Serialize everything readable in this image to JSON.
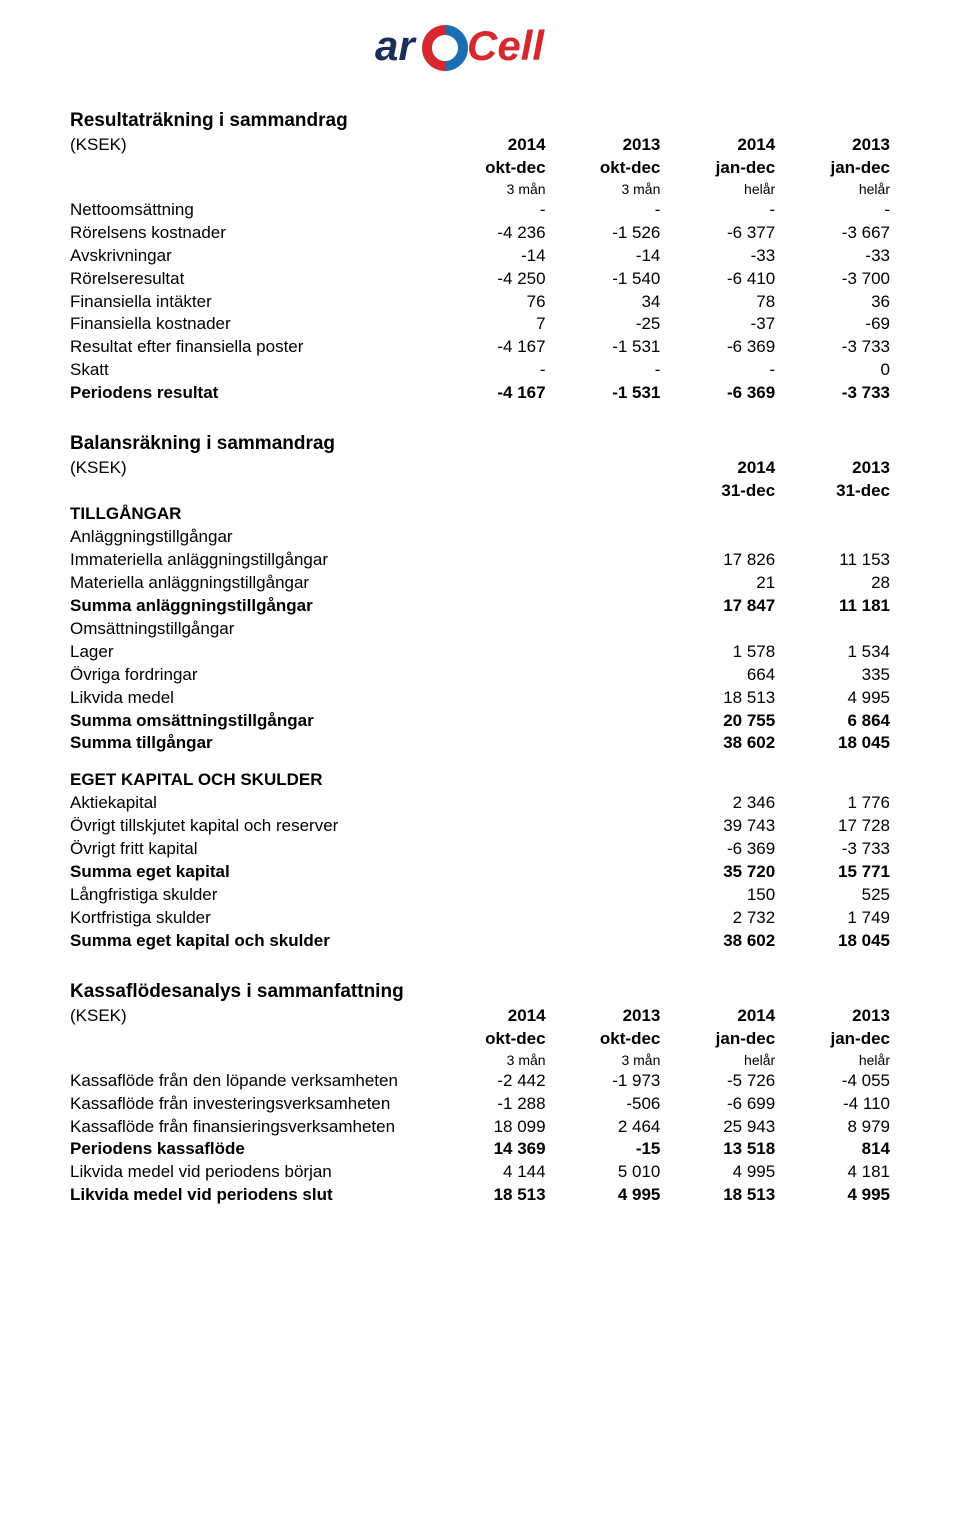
{
  "colors": {
    "text": "#000000",
    "background": "#ffffff",
    "logo_navy": "#1b2d5b",
    "logo_red": "#d7282f",
    "logo_blue": "#1a6fb0",
    "logo_italic": "#1b2d5b"
  },
  "logo": {
    "ar": "ar",
    "cell": "Cell"
  },
  "income": {
    "title": "Resultaträkning i sammandrag",
    "unit": "(KSEK)",
    "years": [
      "2014",
      "2013",
      "2014",
      "2013"
    ],
    "periods": [
      "okt-dec",
      "okt-dec",
      "jan-dec",
      "jan-dec"
    ],
    "sub": [
      "3 mån",
      "3 mån",
      "helår",
      "helår"
    ],
    "rows": [
      {
        "label": "Nettoomsättning",
        "v": [
          "-",
          "-",
          "-",
          "-"
        ]
      },
      {
        "label": "Rörelsens kostnader",
        "v": [
          "-4 236",
          "-1 526",
          "-6 377",
          "-3 667"
        ]
      },
      {
        "label": "Avskrivningar",
        "v": [
          "-14",
          "-14",
          "-33",
          "-33"
        ]
      },
      {
        "label": "Rörelseresultat",
        "v": [
          "-4 250",
          "-1 540",
          "-6 410",
          "-3 700"
        ]
      },
      {
        "label": "Finansiella intäkter",
        "v": [
          "76",
          "34",
          "78",
          "36"
        ]
      },
      {
        "label": "Finansiella kostnader",
        "v": [
          "7",
          "-25",
          "-37",
          "-69"
        ]
      },
      {
        "label": "Resultat efter finansiella poster",
        "v": [
          "-4 167",
          "-1 531",
          "-6 369",
          "-3 733"
        ]
      },
      {
        "label": "Skatt",
        "v": [
          "-",
          "-",
          "-",
          "0"
        ]
      },
      {
        "label": "Periodens resultat",
        "bold": true,
        "v": [
          "-4 167",
          "-1 531",
          "-6 369",
          "-3 733"
        ]
      }
    ]
  },
  "balance": {
    "title": "Balansräkning i sammandrag",
    "unit": "(KSEK)",
    "years": [
      "2014",
      "2013"
    ],
    "dates": [
      "31-dec",
      "31-dec"
    ],
    "assets_header": "TILLGÅNGAR",
    "fixed_header": "Anläggningstillgångar",
    "fixed": [
      {
        "label": "Immateriella anläggningstillgångar",
        "v": [
          "17 826",
          "11 153"
        ]
      },
      {
        "label": "Materiella anläggningstillgångar",
        "v": [
          "21",
          "28"
        ]
      },
      {
        "label": "Summa anläggningstillgångar",
        "bold": true,
        "v": [
          "17 847",
          "11 181"
        ]
      }
    ],
    "current_header": "Omsättningstillgångar",
    "current": [
      {
        "label": "Lager",
        "v": [
          "1 578",
          "1 534"
        ]
      },
      {
        "label": "Övriga fordringar",
        "v": [
          "664",
          "335"
        ]
      },
      {
        "label": "Likvida medel",
        "v": [
          "18 513",
          "4 995"
        ]
      },
      {
        "label": "Summa omsättningstillgångar",
        "bold": true,
        "v": [
          "20 755",
          "6 864"
        ]
      },
      {
        "label": "Summa tillgångar",
        "bold": true,
        "v": [
          "38 602",
          "18 045"
        ]
      }
    ],
    "equity_header": "EGET KAPITAL OCH SKULDER",
    "equity": [
      {
        "label": "Aktiekapital",
        "v": [
          "2 346",
          "1 776"
        ]
      },
      {
        "label": "Övrigt tillskjutet kapital och reserver",
        "v": [
          "39 743",
          "17 728"
        ]
      },
      {
        "label": "Övrigt fritt kapital",
        "v": [
          "-6 369",
          "-3 733"
        ]
      },
      {
        "label": "Summa eget kapital",
        "bold": true,
        "v": [
          "35 720",
          "15 771"
        ]
      },
      {
        "label": "Långfristiga skulder",
        "v": [
          "150",
          "525"
        ]
      },
      {
        "label": "Kortfristiga skulder",
        "v": [
          "2 732",
          "1 749"
        ]
      },
      {
        "label": "Summa eget kapital och skulder",
        "bold": true,
        "v": [
          "38 602",
          "18 045"
        ]
      }
    ]
  },
  "cashflow": {
    "title": "Kassaflödesanalys i sammanfattning",
    "unit": "(KSEK)",
    "years": [
      "2014",
      "2013",
      "2014",
      "2013"
    ],
    "periods": [
      "okt-dec",
      "okt-dec",
      "jan-dec",
      "jan-dec"
    ],
    "sub": [
      "3 mån",
      "3 mån",
      "helår",
      "helår"
    ],
    "rows": [
      {
        "label": "Kassaflöde från den löpande verksamheten",
        "v": [
          "-2 442",
          "-1 973",
          "-5 726",
          "-4 055"
        ]
      },
      {
        "label": "Kassaflöde från investeringsverksamheten",
        "v": [
          "-1 288",
          "-506",
          "-6 699",
          "-4 110"
        ]
      },
      {
        "label": "Kassaflöde från finansieringsverksamheten",
        "v": [
          "18 099",
          "2 464",
          "25 943",
          "8 979"
        ]
      },
      {
        "label": "Periodens kassaflöde",
        "bold": true,
        "v": [
          "14 369",
          "-15",
          "13 518",
          "814"
        ]
      },
      {
        "label": "Likvida medel vid periodens början",
        "v": [
          "4 144",
          "5 010",
          "4 995",
          "4 181"
        ]
      },
      {
        "label": "Likvida medel vid periodens slut",
        "bold": true,
        "v": [
          "18 513",
          "4 995",
          "18 513",
          "4 995"
        ]
      }
    ]
  }
}
